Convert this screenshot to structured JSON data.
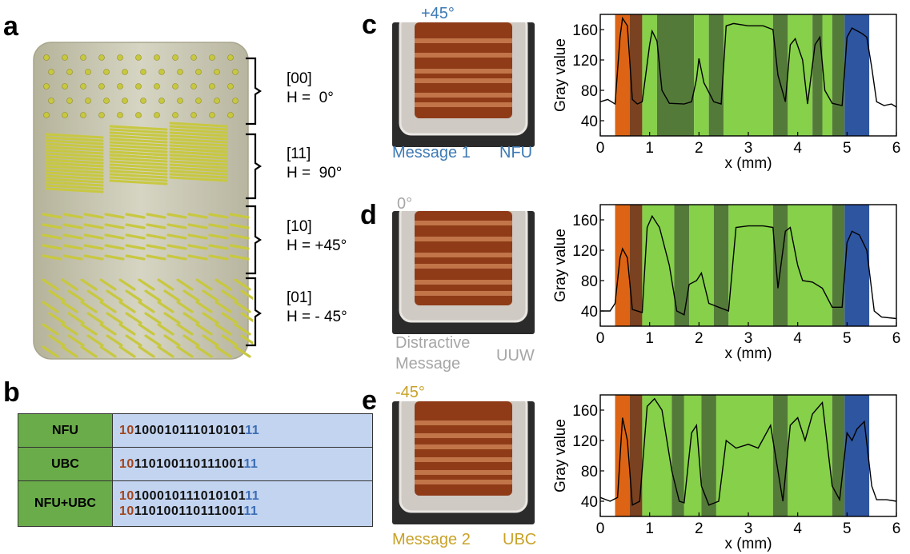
{
  "panels": {
    "a": "a",
    "b": "b",
    "c": "c",
    "d": "d",
    "e": "e"
  },
  "domains": [
    {
      "code": "[00]",
      "angle": "H =  0°"
    },
    {
      "code": "[11]",
      "angle": "H =  90°"
    },
    {
      "code": "[10]",
      "angle": "H = +45°"
    },
    {
      "code": "[01]",
      "angle": "H = - 45°"
    }
  ],
  "bit_table": {
    "rows": [
      {
        "name": "NFU",
        "bits": [
          "1010001011101010111"
        ]
      },
      {
        "name": "UBC",
        "bits": [
          "1011010011011100111"
        ]
      },
      {
        "name": "NFU+UBC",
        "bits": [
          "1010001011101010111",
          "1011010011011100111"
        ]
      }
    ]
  },
  "photos": {
    "c": {
      "angle": "+45°",
      "left": "Message 1",
      "right": "NFU",
      "angle_color": "#3e7ab5",
      "text_color": "#3e7ab5"
    },
    "d": {
      "angle": "0°",
      "left1": "Distractive",
      "left2": "Message",
      "right": "UUW",
      "angle_color": "#a6a6a6",
      "text_color": "#a6a6a6"
    },
    "e": {
      "angle": "-45°",
      "left": "Message 2",
      "right": "UBC",
      "angle_color": "#c9a227",
      "text_color": "#c9a227"
    }
  },
  "colors": {
    "orange": "#dc6414",
    "brown": "#7a4220",
    "light_green": "#86d04a",
    "dark_green": "#547a3a",
    "blue": "#2e55a0",
    "rod": "#c8c840"
  },
  "chart_data": [
    {
      "type": "line",
      "panel": "c",
      "xlabel": "x (mm)",
      "ylabel": "Gray value",
      "xlim": [
        0,
        6
      ],
      "ylim": [
        20,
        180
      ],
      "xticks": [
        "0",
        "1",
        "2",
        "3",
        "4",
        "5",
        "6"
      ],
      "yticks": [
        "40",
        "80",
        "120",
        "160"
      ],
      "bands": [
        {
          "from": 0.3,
          "to": 0.6,
          "color": "orange"
        },
        {
          "from": 0.6,
          "to": 0.85,
          "color": "brown"
        },
        {
          "from": 0.85,
          "to": 1.15,
          "color": "light_green"
        },
        {
          "from": 1.15,
          "to": 1.9,
          "color": "dark_green"
        },
        {
          "from": 1.9,
          "to": 2.2,
          "color": "light_green"
        },
        {
          "from": 2.2,
          "to": 2.5,
          "color": "dark_green"
        },
        {
          "from": 2.5,
          "to": 3.5,
          "color": "light_green"
        },
        {
          "from": 3.5,
          "to": 3.8,
          "color": "dark_green"
        },
        {
          "from": 3.8,
          "to": 4.3,
          "color": "light_green"
        },
        {
          "from": 4.3,
          "to": 4.5,
          "color": "dark_green"
        },
        {
          "from": 4.5,
          "to": 4.7,
          "color": "light_green"
        },
        {
          "from": 4.7,
          "to": 4.95,
          "color": "dark_green"
        },
        {
          "from": 4.95,
          "to": 5.45,
          "color": "blue"
        }
      ],
      "x": [
        0,
        0.15,
        0.3,
        0.4,
        0.45,
        0.55,
        0.65,
        0.75,
        0.85,
        1.0,
        1.05,
        1.15,
        1.25,
        1.4,
        1.7,
        1.85,
        1.95,
        2.0,
        2.1,
        2.3,
        2.45,
        2.55,
        2.7,
        3.0,
        3.3,
        3.5,
        3.6,
        3.75,
        3.85,
        3.95,
        4.1,
        4.2,
        4.35,
        4.45,
        4.55,
        4.7,
        4.9,
        5.0,
        5.1,
        5.3,
        5.4,
        5.5,
        5.6,
        5.75,
        5.9,
        6.0
      ],
      "y": [
        65,
        68,
        62,
        150,
        175,
        165,
        68,
        62,
        65,
        140,
        158,
        145,
        80,
        63,
        62,
        65,
        95,
        122,
        90,
        65,
        62,
        165,
        168,
        165,
        165,
        160,
        100,
        65,
        140,
        148,
        120,
        62,
        140,
        150,
        80,
        63,
        60,
        150,
        162,
        155,
        150,
        110,
        65,
        60,
        62,
        58
      ]
    },
    {
      "type": "line",
      "panel": "d",
      "xlabel": "x (mm)",
      "ylabel": "Gray value",
      "xlim": [
        0,
        6
      ],
      "ylim": [
        20,
        180
      ],
      "xticks": [
        "0",
        "1",
        "2",
        "3",
        "4",
        "5",
        "6"
      ],
      "yticks": [
        "40",
        "80",
        "120",
        "160"
      ],
      "bands": [
        {
          "from": 0.3,
          "to": 0.6,
          "color": "orange"
        },
        {
          "from": 0.6,
          "to": 0.85,
          "color": "brown"
        },
        {
          "from": 0.85,
          "to": 1.5,
          "color": "light_green"
        },
        {
          "from": 1.5,
          "to": 1.8,
          "color": "dark_green"
        },
        {
          "from": 1.8,
          "to": 2.3,
          "color": "light_green"
        },
        {
          "from": 2.3,
          "to": 2.6,
          "color": "dark_green"
        },
        {
          "from": 2.6,
          "to": 3.5,
          "color": "light_green"
        },
        {
          "from": 3.5,
          "to": 3.8,
          "color": "dark_green"
        },
        {
          "from": 3.8,
          "to": 4.7,
          "color": "light_green"
        },
        {
          "from": 4.7,
          "to": 4.95,
          "color": "dark_green"
        },
        {
          "from": 4.95,
          "to": 5.45,
          "color": "blue"
        }
      ],
      "x": [
        0,
        0.2,
        0.3,
        0.4,
        0.45,
        0.55,
        0.65,
        0.85,
        0.95,
        1.05,
        1.2,
        1.4,
        1.55,
        1.7,
        1.8,
        1.95,
        2.05,
        2.2,
        2.4,
        2.6,
        2.75,
        3.0,
        3.3,
        3.5,
        3.6,
        3.75,
        3.85,
        4.0,
        4.1,
        4.3,
        4.5,
        4.7,
        4.9,
        5.0,
        5.1,
        5.25,
        5.4,
        5.55,
        5.7,
        6.0
      ],
      "y": [
        40,
        40,
        50,
        110,
        122,
        110,
        42,
        38,
        150,
        165,
        150,
        100,
        40,
        35,
        75,
        80,
        90,
        50,
        45,
        40,
        150,
        152,
        152,
        150,
        70,
        145,
        150,
        100,
        80,
        78,
        70,
        45,
        45,
        130,
        145,
        140,
        120,
        40,
        32,
        30
      ]
    },
    {
      "type": "line",
      "panel": "e",
      "xlabel": "x (mm)",
      "ylabel": "Gray value",
      "xlim": [
        0,
        6
      ],
      "ylim": [
        20,
        180
      ],
      "xticks": [
        "0",
        "1",
        "2",
        "3",
        "4",
        "5",
        "6"
      ],
      "yticks": [
        "40",
        "80",
        "120",
        "160"
      ],
      "bands": [
        {
          "from": 0.3,
          "to": 0.6,
          "color": "orange"
        },
        {
          "from": 0.6,
          "to": 0.85,
          "color": "brown"
        },
        {
          "from": 0.85,
          "to": 1.45,
          "color": "light_green"
        },
        {
          "from": 1.45,
          "to": 1.7,
          "color": "dark_green"
        },
        {
          "from": 1.7,
          "to": 2.05,
          "color": "light_green"
        },
        {
          "from": 2.05,
          "to": 2.35,
          "color": "dark_green"
        },
        {
          "from": 2.35,
          "to": 3.5,
          "color": "light_green"
        },
        {
          "from": 3.5,
          "to": 3.8,
          "color": "dark_green"
        },
        {
          "from": 3.8,
          "to": 4.7,
          "color": "light_green"
        },
        {
          "from": 4.7,
          "to": 4.95,
          "color": "dark_green"
        },
        {
          "from": 4.95,
          "to": 5.45,
          "color": "blue"
        }
      ],
      "x": [
        0,
        0.2,
        0.35,
        0.45,
        0.55,
        0.65,
        0.8,
        0.95,
        1.1,
        1.25,
        1.45,
        1.6,
        1.7,
        1.85,
        1.95,
        2.05,
        2.2,
        2.4,
        2.55,
        2.75,
        3.0,
        3.2,
        3.45,
        3.6,
        3.7,
        3.85,
        4.0,
        4.15,
        4.3,
        4.5,
        4.7,
        4.85,
        5.0,
        5.1,
        5.2,
        5.35,
        5.5,
        5.6,
        5.8,
        6.0
      ],
      "y": [
        45,
        40,
        45,
        150,
        120,
        35,
        40,
        165,
        175,
        160,
        80,
        40,
        38,
        130,
        140,
        60,
        35,
        40,
        120,
        110,
        115,
        110,
        140,
        80,
        40,
        140,
        150,
        120,
        155,
        170,
        60,
        42,
        130,
        120,
        135,
        145,
        60,
        42,
        42,
        40
      ]
    }
  ]
}
